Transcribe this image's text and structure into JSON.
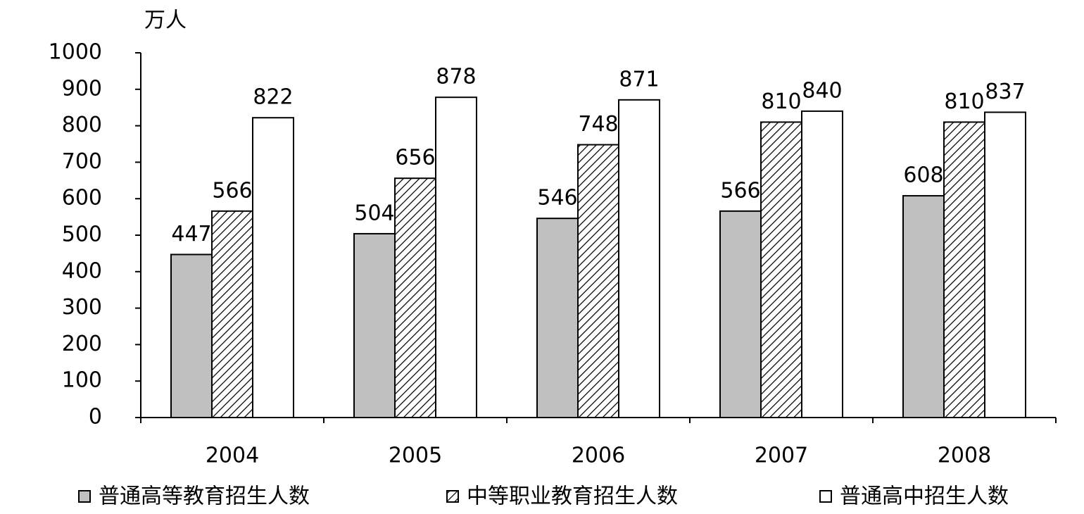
{
  "chart_data": {
    "type": "bar",
    "y_label": "万人",
    "categories": [
      "2004",
      "2005",
      "2006",
      "2007",
      "2008"
    ],
    "series": [
      {
        "name": "普通高等教育招生人数",
        "color": "#c0c0c0",
        "values": [
          447,
          504,
          546,
          566,
          608
        ]
      },
      {
        "name": "中等职业教育招生人数",
        "color": "#ffffff",
        "pattern": "hatch",
        "values": [
          566,
          656,
          748,
          810,
          810
        ]
      },
      {
        "name": "普通高中招生人数",
        "color": "#ffffff",
        "values": [
          822,
          878,
          871,
          840,
          837
        ]
      }
    ],
    "ylim": [
      0,
      1000
    ],
    "yticks": [
      0,
      100,
      200,
      300,
      400,
      500,
      600,
      700,
      800,
      900,
      1000
    ],
    "grid": false,
    "legend": "bottom"
  }
}
